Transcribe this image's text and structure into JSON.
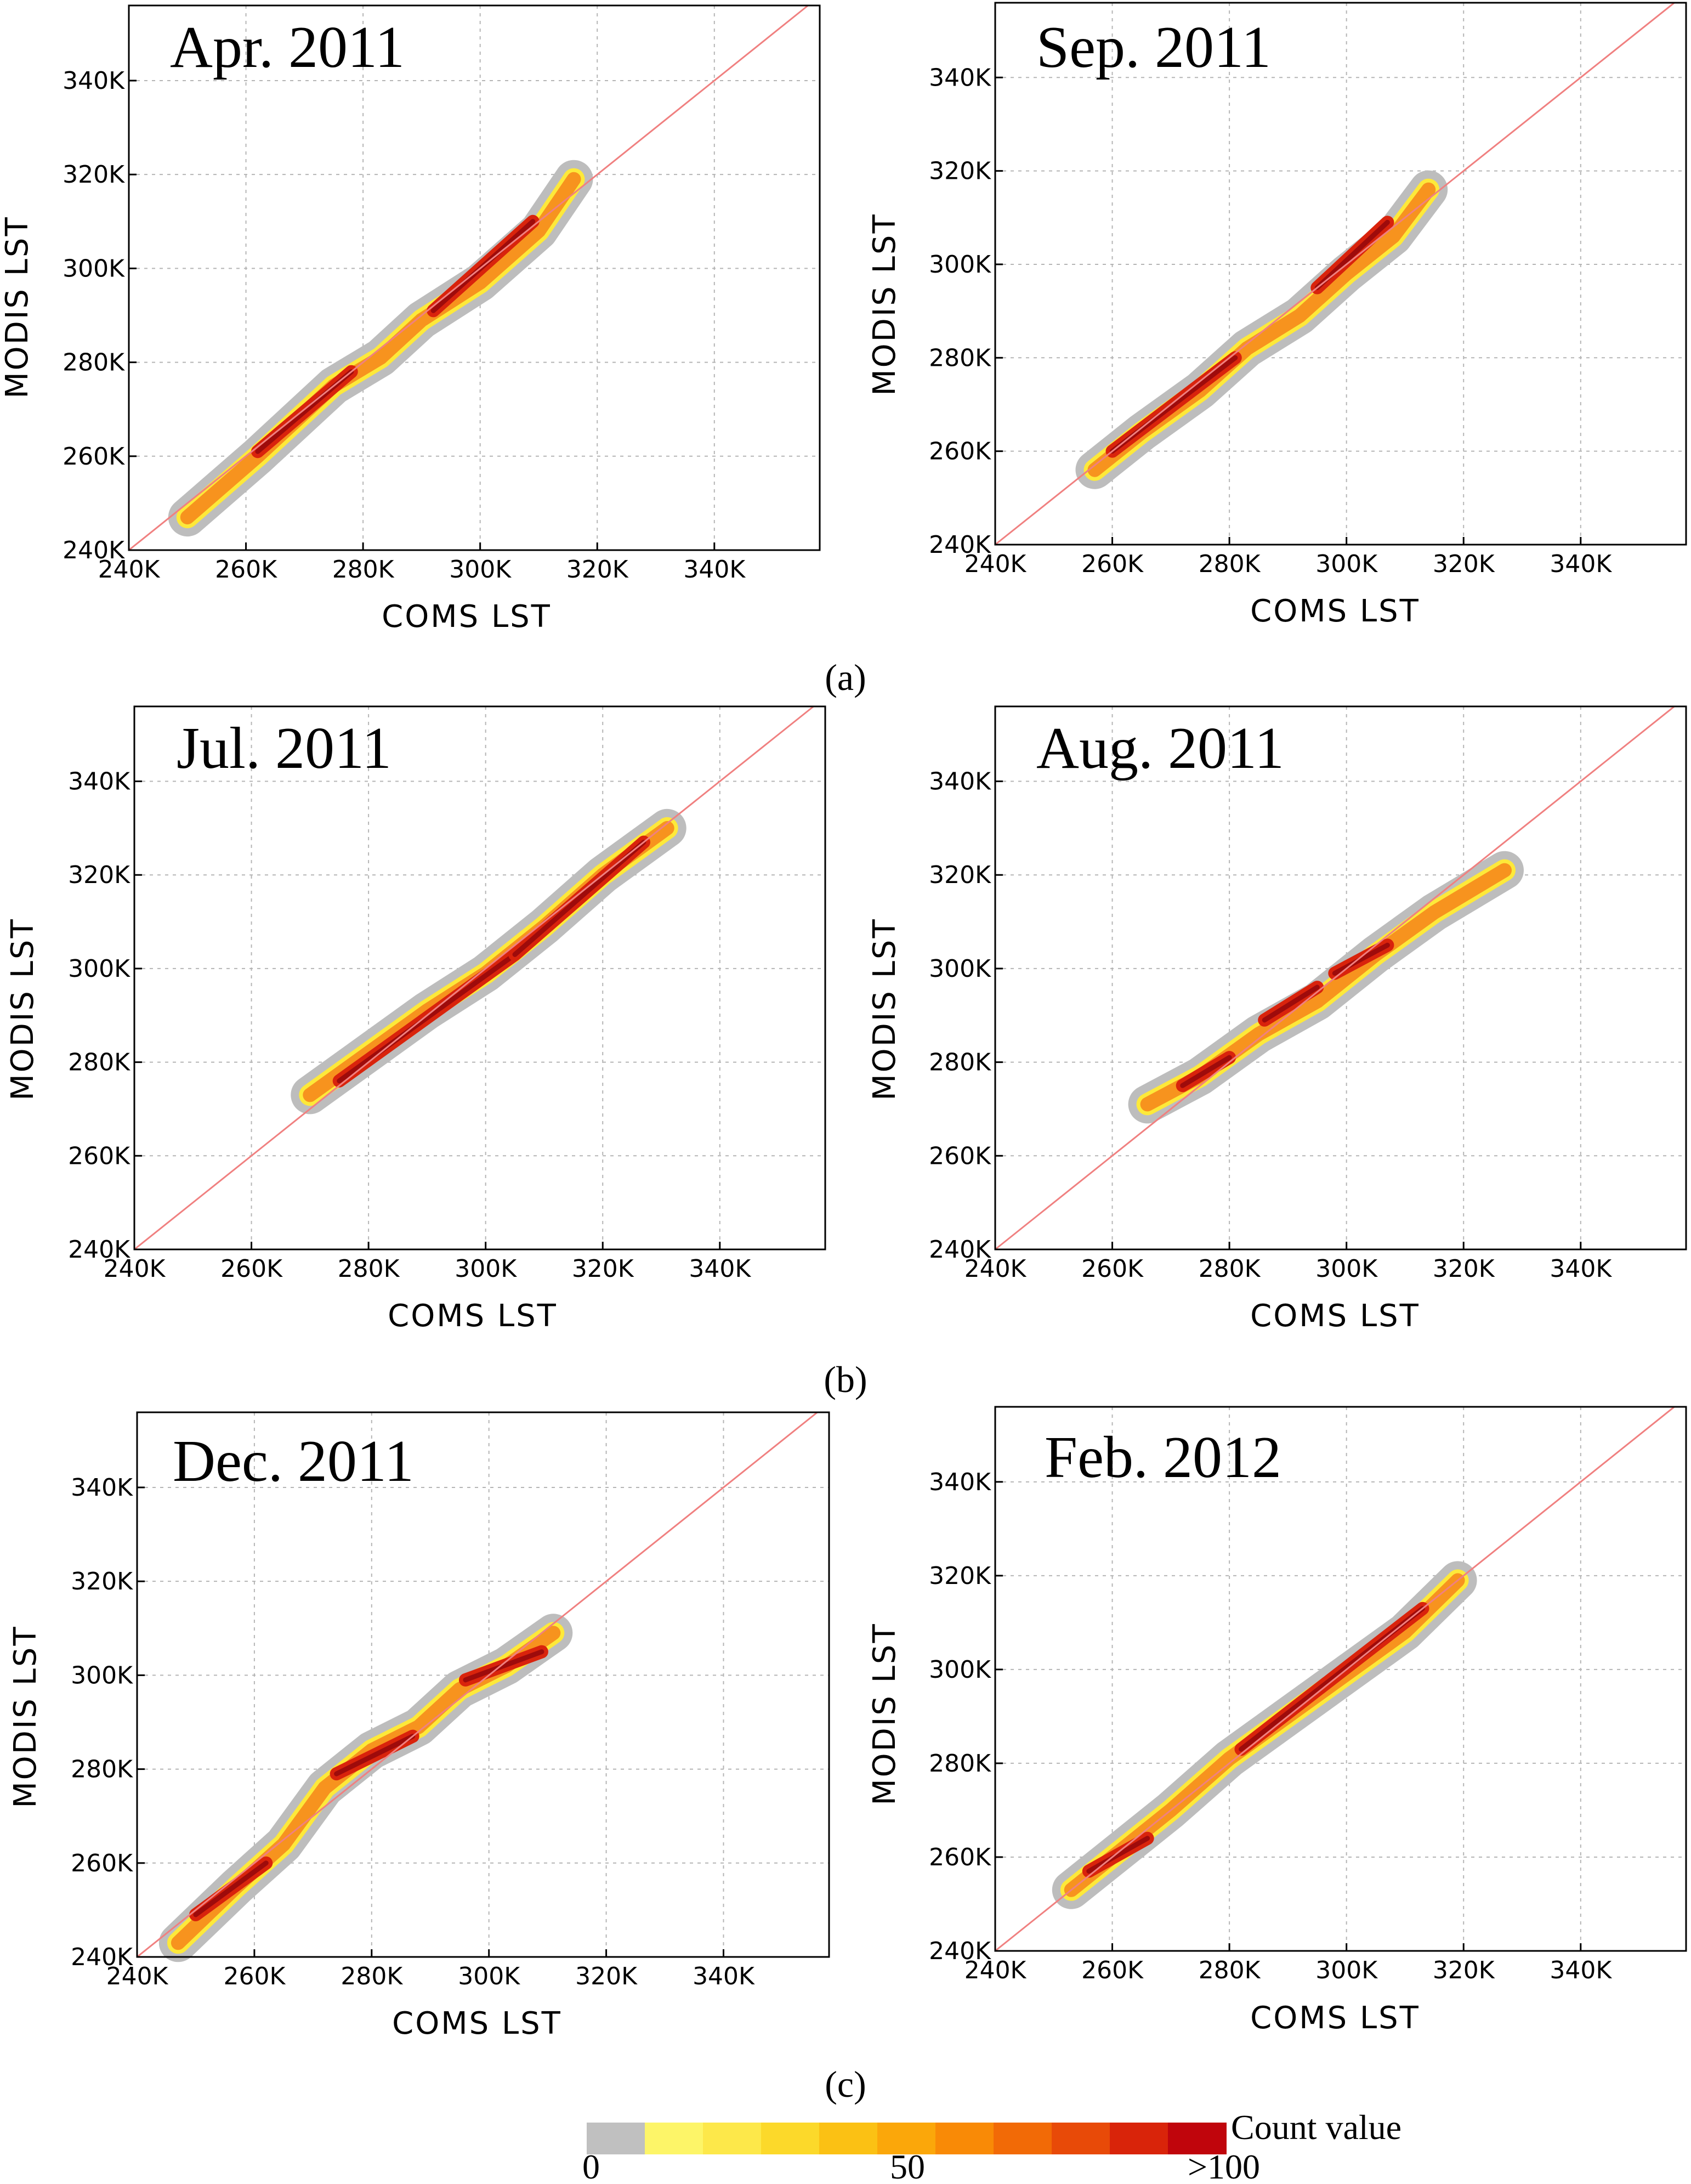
{
  "chart_data": [
    {
      "type": "heatmap",
      "title": "Apr. 2011",
      "xlabel": "COMS LST",
      "ylabel": "MODIS LST",
      "xlim": [
        240,
        358
      ],
      "ylim": [
        240,
        356
      ],
      "x_ticks": [
        "240K",
        "260K",
        "280K",
        "300K",
        "320K",
        "340K"
      ],
      "y_ticks": [
        "240K",
        "260K",
        "280K",
        "300K",
        "320K",
        "340K"
      ],
      "grid": true,
      "reference_line": "1:1",
      "density_path": [
        [
          250,
          247
        ],
        [
          262,
          260
        ],
        [
          275,
          275
        ],
        [
          283,
          281
        ],
        [
          290,
          289
        ],
        [
          300,
          297
        ],
        [
          310,
          308
        ],
        [
          316,
          319
        ]
      ],
      "core_segments": [
        [
          262,
          261,
          278,
          278
        ],
        [
          292,
          291,
          309,
          310
        ]
      ]
    },
    {
      "type": "heatmap",
      "title": "Sep. 2011",
      "xlabel": "COMS LST",
      "ylabel": "MODIS LST",
      "xlim": [
        240,
        358
      ],
      "ylim": [
        240,
        356
      ],
      "x_ticks": [
        "240K",
        "260K",
        "280K",
        "300K",
        "320K",
        "340K"
      ],
      "y_ticks": [
        "240K",
        "260K",
        "280K",
        "300K",
        "320K",
        "340K"
      ],
      "grid": true,
      "reference_line": "1:1",
      "density_path": [
        [
          257,
          256
        ],
        [
          265,
          264
        ],
        [
          275,
          273
        ],
        [
          283,
          282
        ],
        [
          292,
          289
        ],
        [
          300,
          298
        ],
        [
          308,
          306
        ],
        [
          314,
          316
        ]
      ],
      "core_segments": [
        [
          260,
          260,
          281,
          280
        ],
        [
          295,
          295,
          307,
          309
        ]
      ]
    },
    {
      "type": "heatmap",
      "title": "Jul. 2011",
      "xlabel": "COMS LST",
      "ylabel": "MODIS LST",
      "xlim": [
        240,
        358
      ],
      "ylim": [
        240,
        356
      ],
      "x_ticks": [
        "240K",
        "260K",
        "280K",
        "300K",
        "320K",
        "340K"
      ],
      "y_ticks": [
        "240K",
        "260K",
        "280K",
        "300K",
        "320K",
        "340K"
      ],
      "grid": true,
      "reference_line": "1:1",
      "density_path": [
        [
          270,
          273
        ],
        [
          280,
          282
        ],
        [
          290,
          291
        ],
        [
          300,
          299
        ],
        [
          310,
          309
        ],
        [
          320,
          320
        ],
        [
          331,
          330
        ]
      ],
      "core_segments": [
        [
          275,
          276,
          305,
          303
        ],
        [
          305,
          303,
          327,
          327
        ]
      ]
    },
    {
      "type": "heatmap",
      "title": "Aug. 2011",
      "xlabel": "COMS LST",
      "ylabel": "MODIS LST",
      "xlim": [
        240,
        358
      ],
      "ylim": [
        240,
        356
      ],
      "x_ticks": [
        "240K",
        "260K",
        "280K",
        "300K",
        "320K",
        "340K"
      ],
      "y_ticks": [
        "240K",
        "260K",
        "280K",
        "300K",
        "320K",
        "340K"
      ],
      "grid": true,
      "reference_line": "1:1",
      "density_path": [
        [
          266,
          271
        ],
        [
          275,
          277
        ],
        [
          285,
          286
        ],
        [
          295,
          293
        ],
        [
          305,
          303
        ],
        [
          315,
          312
        ],
        [
          327,
          321
        ]
      ],
      "core_segments": [
        [
          272,
          275,
          280,
          281
        ],
        [
          286,
          289,
          295,
          296
        ],
        [
          298,
          299,
          307,
          305
        ]
      ]
    },
    {
      "type": "heatmap",
      "title": "Dec. 2011",
      "xlabel": "COMS LST",
      "ylabel": "MODIS LST",
      "xlim": [
        240,
        358
      ],
      "ylim": [
        240,
        356
      ],
      "x_ticks": [
        "240K",
        "260K",
        "280K",
        "300K",
        "320K",
        "340K"
      ],
      "y_ticks": [
        "240K",
        "260K",
        "280K",
        "300K",
        "320K",
        "340K"
      ],
      "grid": true,
      "reference_line": "1:1",
      "density_path": [
        [
          247,
          243
        ],
        [
          257,
          255
        ],
        [
          265,
          264
        ],
        [
          272,
          276
        ],
        [
          280,
          284
        ],
        [
          288,
          289
        ],
        [
          295,
          297
        ],
        [
          303,
          302
        ],
        [
          311,
          309
        ]
      ],
      "core_segments": [
        [
          250,
          249,
          262,
          260
        ],
        [
          274,
          279,
          287,
          287
        ],
        [
          296,
          299,
          309,
          305
        ]
      ]
    },
    {
      "type": "heatmap",
      "title": "Feb. 2012",
      "xlabel": "COMS LST",
      "ylabel": "MODIS LST",
      "xlim": [
        240,
        358
      ],
      "ylim": [
        240,
        356
      ],
      "x_ticks": [
        "240K",
        "260K",
        "280K",
        "300K",
        "320K",
        "340K"
      ],
      "y_ticks": [
        "240K",
        "260K",
        "280K",
        "300K",
        "320K",
        "340K"
      ],
      "grid": true,
      "reference_line": "1:1",
      "density_path": [
        [
          253,
          253
        ],
        [
          262,
          262
        ],
        [
          270,
          270
        ],
        [
          280,
          281
        ],
        [
          290,
          290
        ],
        [
          300,
          299
        ],
        [
          310,
          308
        ],
        [
          319,
          319
        ]
      ],
      "core_segments": [
        [
          256,
          257,
          266,
          264
        ],
        [
          282,
          283,
          313,
          313
        ]
      ]
    }
  ],
  "sub_labels": [
    "(a)",
    "(b)",
    "(c)"
  ],
  "legend": {
    "title": "Count value",
    "tick_labels": [
      "0",
      "50",
      ">100"
    ],
    "colors": [
      "#c0c0c0",
      "#fdf568",
      "#fde84a",
      "#fcd92a",
      "#fbc114",
      "#fba70a",
      "#f98a06",
      "#f26a06",
      "#e84a08",
      "#d9240a",
      "#c0050c"
    ]
  },
  "palette": {
    "halo": "#bdbdbd",
    "yellow": "#fde93a",
    "orange": "#f7931e",
    "red": "#d9230c",
    "darkred": "#9e0b0b",
    "one_to_one": "#f08080"
  }
}
